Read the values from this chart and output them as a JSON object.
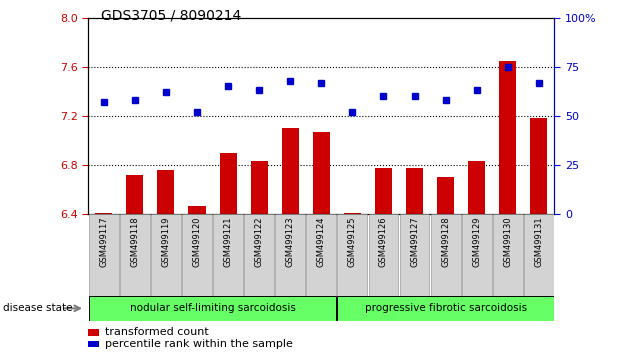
{
  "title": "GDS3705 / 8090214",
  "samples": [
    "GSM499117",
    "GSM499118",
    "GSM499119",
    "GSM499120",
    "GSM499121",
    "GSM499122",
    "GSM499123",
    "GSM499124",
    "GSM499125",
    "GSM499126",
    "GSM499127",
    "GSM499128",
    "GSM499129",
    "GSM499130",
    "GSM499131"
  ],
  "bar_values": [
    6.41,
    6.72,
    6.76,
    6.47,
    6.9,
    6.83,
    7.1,
    7.07,
    6.41,
    6.78,
    6.78,
    6.7,
    6.83,
    7.65,
    7.18
  ],
  "dot_values": [
    57,
    58,
    62,
    52,
    65,
    63,
    68,
    67,
    52,
    60,
    60,
    58,
    63,
    75,
    67
  ],
  "ylim_left": [
    6.4,
    8.0
  ],
  "ylim_right": [
    0,
    100
  ],
  "yticks_left": [
    6.4,
    6.8,
    7.2,
    7.6,
    8.0
  ],
  "yticks_right": [
    0,
    25,
    50,
    75,
    100
  ],
  "bar_color": "#cc0000",
  "dot_color": "#0000cc",
  "bar_bottom": 6.4,
  "group1_label": "nodular self-limiting sarcoidosis",
  "group1_count": 8,
  "group2_label": "progressive fibrotic sarcoidosis",
  "group2_count": 7,
  "disease_label": "disease state",
  "legend_bar": "transformed count",
  "legend_dot": "percentile rank within the sample",
  "group_bg_color": "#66ff66",
  "tick_label_bg": "#cccccc",
  "fig_bg": "#ffffff",
  "ylabel_left_color": "#cc0000",
  "ylabel_right_color": "#0000cc",
  "grid_lines_at": [
    6.8,
    7.2,
    7.6
  ]
}
